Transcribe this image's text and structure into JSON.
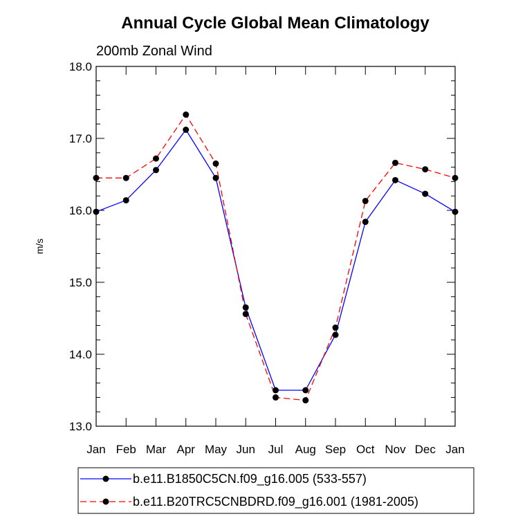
{
  "chart_data": {
    "type": "line",
    "title": "Annual Cycle Global Mean Climatology",
    "subtitle": "200mb Zonal Wind",
    "ylabel": "m/s",
    "xlabel": "",
    "categories": [
      "Jan",
      "Feb",
      "Mar",
      "Apr",
      "May",
      "Jun",
      "Jul",
      "Aug",
      "Sep",
      "Oct",
      "Nov",
      "Dec",
      "Jan"
    ],
    "ylim": [
      13.0,
      18.0
    ],
    "yticks": [
      "13.0",
      "14.0",
      "15.0",
      "16.0",
      "17.0",
      "18.0"
    ],
    "grid": false,
    "legend_position": "bottom",
    "series": [
      {
        "name": "b.e11.B1850C5CN.f09_g16.005 (533-557)",
        "color": "#0000ff",
        "dash": "solid",
        "marker": "circle",
        "values": [
          15.98,
          16.14,
          16.56,
          17.12,
          16.45,
          14.65,
          13.5,
          13.5,
          14.27,
          15.84,
          16.42,
          16.23,
          15.98
        ]
      },
      {
        "name": "b.e11.B20TRC5CNBDRD.f09_g16.001 (1981-2005)",
        "color": "#ff0000",
        "dash": "dashed",
        "marker": "circle",
        "values": [
          16.45,
          16.45,
          16.72,
          17.33,
          16.65,
          14.56,
          13.4,
          13.36,
          14.37,
          16.13,
          16.66,
          16.57,
          16.45
        ]
      }
    ]
  }
}
